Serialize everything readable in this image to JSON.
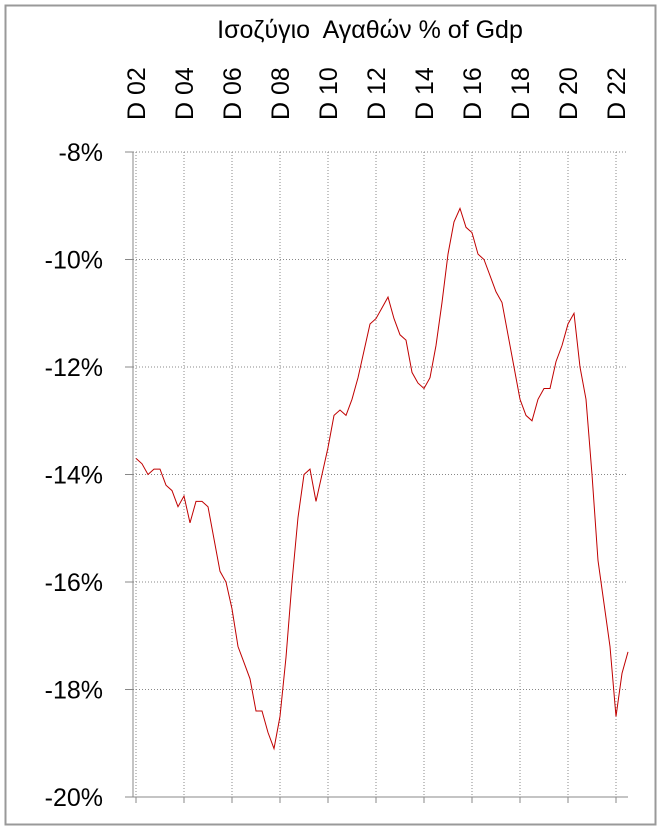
{
  "chart_data": {
    "type": "line",
    "title": "Ισοζύγιο  Αγαθών % of Gdp",
    "categories": [
      "D 02",
      null,
      null,
      null,
      null,
      null,
      null,
      null,
      "D 04",
      null,
      null,
      null,
      null,
      null,
      null,
      null,
      "D 06",
      null,
      null,
      null,
      null,
      null,
      null,
      null,
      "D 08",
      null,
      null,
      null,
      null,
      null,
      null,
      null,
      "D 10",
      null,
      null,
      null,
      null,
      null,
      null,
      null,
      "D 12",
      null,
      null,
      null,
      null,
      null,
      null,
      null,
      "D 14",
      null,
      null,
      null,
      null,
      null,
      null,
      null,
      "D 16",
      null,
      null,
      null,
      null,
      null,
      null,
      null,
      "D 18",
      null,
      null,
      null,
      null,
      null,
      null,
      null,
      "D 20",
      null,
      null,
      null,
      null,
      null,
      null,
      null,
      "D 22",
      null,
      null
    ],
    "series": [
      {
        "color": "#c00000",
        "values": [
          -13.7,
          -13.8,
          -14.0,
          -13.9,
          -13.9,
          -14.2,
          -14.3,
          -14.6,
          -14.4,
          -14.9,
          -14.5,
          -14.5,
          -14.6,
          -15.2,
          -15.8,
          -16.0,
          -16.5,
          -17.2,
          -17.5,
          -17.8,
          -18.4,
          -18.4,
          -18.8,
          -19.1,
          -18.5,
          -17.4,
          -16.0,
          -14.8,
          -14.0,
          -13.9,
          -14.5,
          -14.0,
          -13.5,
          -12.9,
          -12.8,
          -12.9,
          -12.6,
          -12.2,
          -11.7,
          -11.2,
          -11.1,
          -10.9,
          -10.7,
          -11.1,
          -11.4,
          -11.5,
          -12.1,
          -12.3,
          -12.4,
          -12.2,
          -11.6,
          -10.8,
          -9.9,
          -9.3,
          -9.05,
          -9.4,
          -9.5,
          -9.9,
          -10.0,
          -10.3,
          -10.6,
          -10.8,
          -11.4,
          -12.0,
          -12.6,
          -12.9,
          -13.0,
          -12.6,
          -12.4,
          -12.4,
          -11.9,
          -11.6,
          -11.2,
          -11.0,
          -12.0,
          -12.6,
          -14.0,
          -15.6,
          -16.4,
          -17.2,
          -18.5,
          -17.7,
          -17.3
        ]
      }
    ],
    "ylim": [
      -20,
      -8
    ],
    "yticks": [
      {
        "value": -8,
        "label": "-8%"
      },
      {
        "value": -10,
        "label": "-10%"
      },
      {
        "value": -12,
        "label": "-12%"
      },
      {
        "value": -14,
        "label": "-14%"
      },
      {
        "value": -16,
        "label": "-16%"
      },
      {
        "value": -18,
        "label": "-18%"
      },
      {
        "value": -20,
        "label": "-20%"
      }
    ],
    "grid": true
  }
}
